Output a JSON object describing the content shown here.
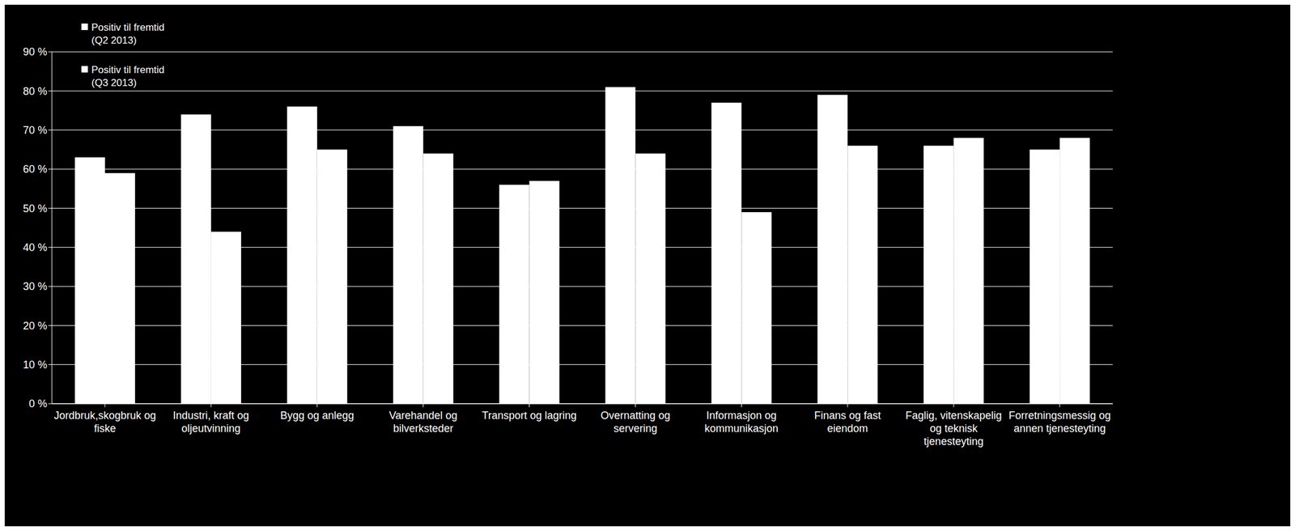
{
  "chart_data": {
    "type": "bar",
    "categories": [
      "Jordbruk,skogbruk og fiske",
      "Industri, kraft og oljeutvinning",
      "Bygg og anlegg",
      "Varehandel og bilverksteder",
      "Transport og lagring",
      "Overnatting og servering",
      "Informasjon og kommunikasjon",
      "Finans og fast eiendom",
      "Faglig, vitenskapelig og teknisk tjenesteyting",
      "Forretningsmessig og annen tjenesteyting"
    ],
    "series": [
      {
        "name": "Positiv til fremtid (Q2 2013)",
        "color": "#ffffff",
        "values": [
          63,
          74,
          76,
          71,
          56,
          81,
          77,
          79,
          66,
          65
        ]
      },
      {
        "name": "Positiv til fremtid (Q3 2013)",
        "color": "#ffffff",
        "values": [
          59,
          44,
          65,
          64,
          57,
          64,
          49,
          66,
          68,
          68
        ]
      }
    ],
    "ylim": [
      0,
      90
    ],
    "yticks": [
      {
        "value": 0,
        "label": "0 %"
      },
      {
        "value": 10,
        "label": "10 %"
      },
      {
        "value": 20,
        "label": "20 %"
      },
      {
        "value": 30,
        "label": "30 %"
      },
      {
        "value": 40,
        "label": "40 %"
      },
      {
        "value": 50,
        "label": "50 %"
      },
      {
        "value": 60,
        "label": "60 %"
      },
      {
        "value": 70,
        "label": "70 %"
      },
      {
        "value": 80,
        "label": "80 %"
      },
      {
        "value": 90,
        "label": "90 %"
      }
    ],
    "grid": true,
    "legend": "top-left"
  }
}
